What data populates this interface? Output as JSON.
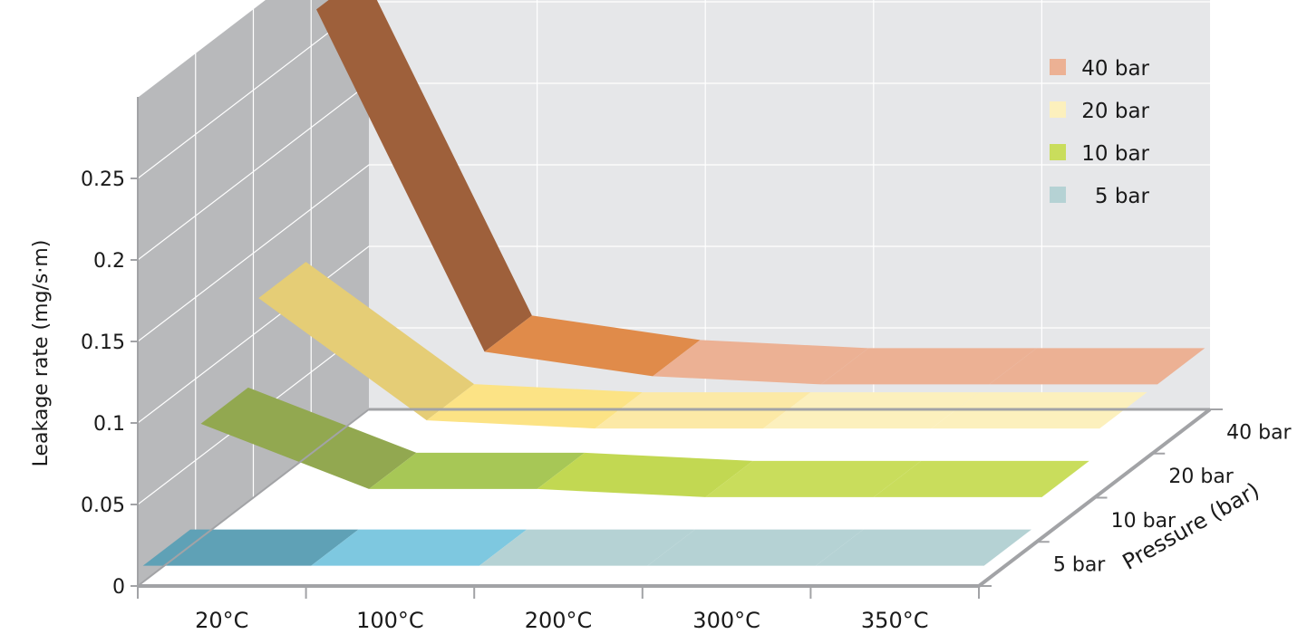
{
  "chart_data": {
    "type": "area",
    "categories": [
      "20°C",
      "100°C",
      "200°C",
      "300°C",
      "350°C"
    ],
    "depth_categories": [
      "5 bar",
      "10 bar",
      "20 bar",
      "40 bar"
    ],
    "series": [
      {
        "name": "5 bar",
        "values": [
          0.01,
          0.01,
          0.01,
          0.01,
          0.01
        ]
      },
      {
        "name": "10 bar",
        "values": [
          0.07,
          0.03,
          0.03,
          0.025,
          0.025
        ]
      },
      {
        "name": "20 bar",
        "values": [
          0.12,
          0.045,
          0.04,
          0.04,
          0.04
        ]
      },
      {
        "name": "40 bar",
        "values": [
          0.27,
          0.06,
          0.045,
          0.04,
          0.04
        ]
      }
    ],
    "ylabel": "Leakage rate (mg/s·m)",
    "zlabel": "Pressure  (bar)",
    "yticks": [
      "0",
      "0.05",
      "0.1",
      "0.15",
      "0.2",
      "0.25"
    ],
    "ylim": [
      0,
      0.25
    ],
    "legend": {
      "placement": "top-right",
      "entries": [
        "40 bar",
        "20 bar",
        "10 bar",
        "5 bar"
      ]
    },
    "grid": true,
    "colors": {
      "back_wall": "#e6e7e9",
      "side_wall": "#b8b9bb",
      "floor": "#ffffff",
      "axis": "#a2a3a6",
      "gridline": "#ffffff",
      "series": {
        "5 bar": [
          "#5fa1b6",
          "#7ec8e0",
          "#b5d2d4",
          "#b5d2d4",
          "#b5d2d4"
        ],
        "10 bar": [
          "#92a850",
          "#a7c756",
          "#c2d852",
          "#c9dd5c",
          "#c9dd5c"
        ],
        "20 bar": [
          "#e5cd76",
          "#fce385",
          "#fce9a6",
          "#fcf0bd",
          "#fcf0bd"
        ],
        "40 bar": [
          "#9e603b",
          "#e08b4a",
          "#ecb194",
          "#ecb194",
          "#ecb194"
        ]
      }
    }
  }
}
